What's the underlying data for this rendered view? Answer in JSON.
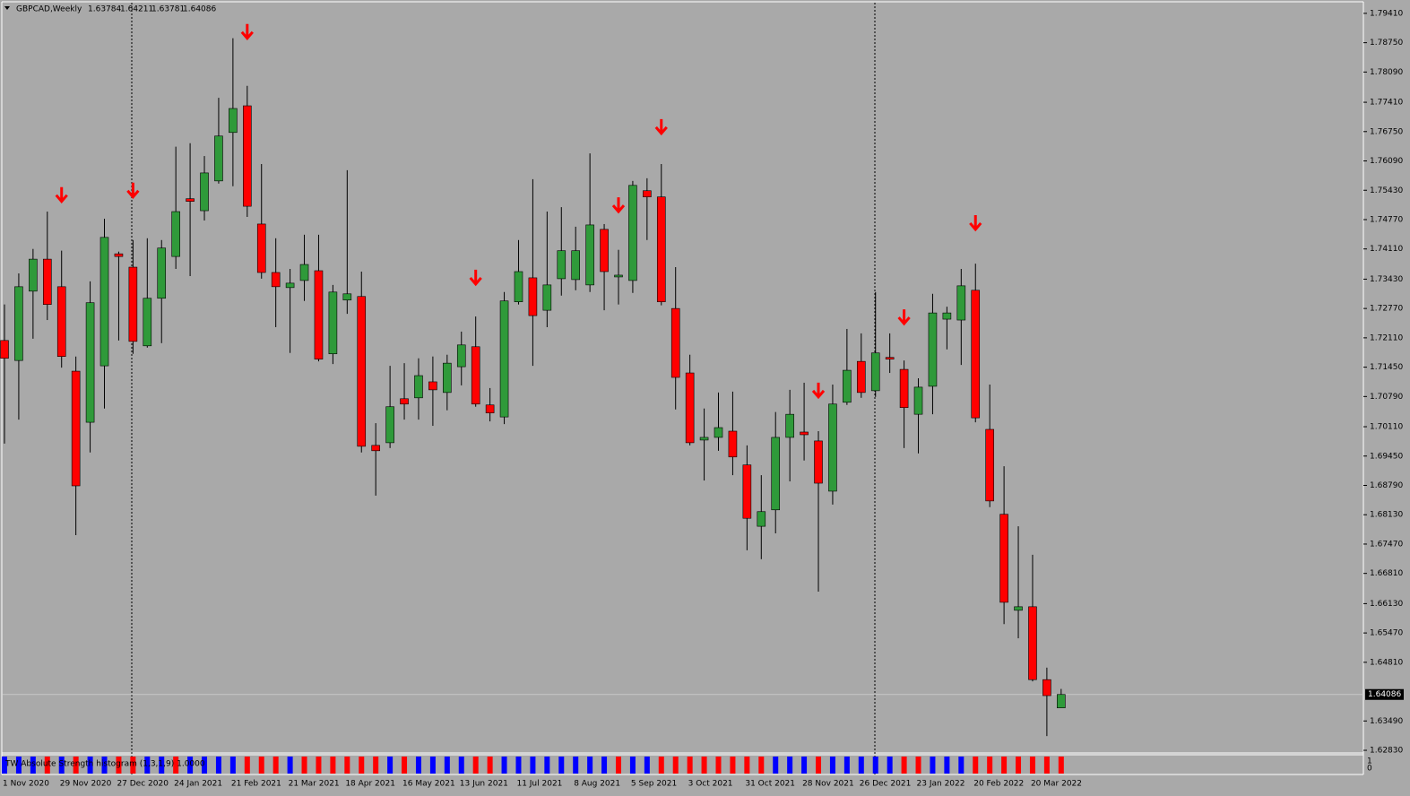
{
  "chart_data": {
    "type": "candlestick",
    "title": "GBPCAD,Weekly",
    "categories": [
      "1 Nov 2020",
      null,
      null,
      null,
      "29 Nov 2020",
      null,
      null,
      null,
      "27 Dec 2020",
      null,
      null,
      null,
      "24 Jan 2021",
      null,
      null,
      null,
      "21 Feb 2021",
      null,
      null,
      null,
      "21 Mar 2021",
      null,
      null,
      null,
      "18 Apr 2021",
      null,
      null,
      null,
      "16 May 2021",
      null,
      null,
      null,
      "13 Jun 2021",
      null,
      null,
      null,
      "11 Jul 2021",
      null,
      null,
      null,
      "8 Aug 2021",
      null,
      null,
      null,
      "5 Sep 2021",
      null,
      null,
      null,
      "3 Oct 2021",
      null,
      null,
      null,
      "31 Oct 2021",
      null,
      null,
      null,
      "28 Nov 2021",
      null,
      null,
      null,
      "26 Dec 2021",
      null,
      null,
      null,
      "23 Jan 2022",
      null,
      null,
      null,
      "20 Feb 2022",
      null,
      null,
      null,
      "20 Mar 2022",
      null,
      null
    ],
    "open": [
      1.7205,
      1.716,
      1.7316,
      1.7388,
      1.7326,
      1.7136,
      1.7021,
      1.7148,
      1.74,
      1.737,
      1.7193,
      1.73,
      1.7394,
      1.7524,
      1.7497,
      1.7564,
      1.7673,
      1.7733,
      1.7467,
      1.7358,
      1.7324,
      1.734,
      1.7362,
      1.7175,
      1.7296,
      1.7304,
      1.6969,
      1.6975,
      1.7074,
      1.7076,
      1.7112,
      1.7088,
      1.7146,
      1.7191,
      1.706,
      1.7033,
      1.7292,
      1.7346,
      1.7273,
      1.7344,
      1.7342,
      1.733,
      1.7455,
      1.7348,
      1.734,
      1.7542,
      1.7528,
      1.7277,
      1.7132,
      1.6981,
      1.6987,
      1.7001,
      1.6925,
      1.6787,
      1.6824,
      1.6987,
      1.6999,
      1.6979,
      1.6866,
      1.7066,
      1.7158,
      1.7092,
      1.7167,
      1.714,
      1.7039,
      1.7102,
      1.7253,
      1.7251,
      1.7318,
      1.7005,
      1.6814,
      1.6598,
      1.6606,
      1.6442,
      1.63784
    ],
    "high": [
      1.7286,
      1.7356,
      1.7411,
      1.7495,
      1.7407,
      1.7169,
      1.7338,
      1.7479,
      1.7405,
      1.7431,
      1.7435,
      1.7431,
      1.7641,
      1.7649,
      1.762,
      1.7751,
      1.7885,
      1.7778,
      1.7602,
      1.7435,
      1.7366,
      1.7443,
      1.7443,
      1.733,
      1.7588,
      1.736,
      1.7019,
      1.7148,
      1.7154,
      1.7165,
      1.7169,
      1.7173,
      1.7225,
      1.7259,
      1.7098,
      1.7314,
      1.7431,
      1.7568,
      1.7495,
      1.7505,
      1.7461,
      1.7626,
      1.7467,
      1.7409,
      1.7564,
      1.757,
      1.7602,
      1.737,
      1.7173,
      1.7052,
      1.7088,
      1.709,
      1.6969,
      1.6902,
      1.7044,
      1.7094,
      1.711,
      1.7001,
      1.7106,
      1.7231,
      1.7221,
      1.7314,
      1.7221,
      1.716,
      1.712,
      1.731,
      1.7281,
      1.7366,
      1.7378,
      1.7106,
      1.6922,
      1.6787,
      1.6723,
      1.6469,
      1.64211
    ],
    "low": [
      1.6973,
      1.7027,
      1.7209,
      1.7251,
      1.7144,
      1.6767,
      1.6953,
      1.7052,
      1.7205,
      1.7175,
      1.7189,
      1.7199,
      1.7366,
      1.735,
      1.7475,
      1.7558,
      1.7552,
      1.7483,
      1.7344,
      1.7235,
      1.7177,
      1.7294,
      1.7158,
      1.7152,
      1.7265,
      1.6953,
      1.6856,
      1.6963,
      1.7027,
      1.7027,
      1.7013,
      1.7048,
      1.7104,
      1.7056,
      1.7023,
      1.7017,
      1.7286,
      1.7148,
      1.7235,
      1.7306,
      1.7318,
      1.7314,
      1.7273,
      1.7286,
      1.7312,
      1.7431,
      1.7284,
      1.705,
      1.6969,
      1.689,
      1.6957,
      1.6902,
      1.6733,
      1.6713,
      1.6771,
      1.6888,
      1.6935,
      1.664,
      1.6836,
      1.706,
      1.7076,
      1.7078,
      1.7132,
      1.6963,
      1.6951,
      1.7039,
      1.7185,
      1.715,
      1.7021,
      1.683,
      1.6567,
      1.6535,
      1.6438,
      1.6315,
      1.63781
    ],
    "close": [
      1.7165,
      1.7326,
      1.7388,
      1.7286,
      1.7169,
      1.6878,
      1.729,
      1.7437,
      1.7394,
      1.7203,
      1.73,
      1.7413,
      1.7495,
      1.7518,
      1.7582,
      1.7665,
      1.7727,
      1.7507,
      1.7358,
      1.7326,
      1.7334,
      1.7376,
      1.7163,
      1.7314,
      1.731,
      1.6967,
      1.6957,
      1.7056,
      1.7062,
      1.7126,
      1.7094,
      1.7154,
      1.7195,
      1.7062,
      1.7042,
      1.7294,
      1.736,
      1.7261,
      1.733,
      1.7407,
      1.7407,
      1.7465,
      1.736,
      1.7352,
      1.7554,
      1.7528,
      1.7292,
      1.7122,
      1.6975,
      1.6987,
      1.7009,
      1.6943,
      1.6805,
      1.682,
      1.6987,
      1.7039,
      1.6993,
      1.6884,
      1.7062,
      1.7138,
      1.7088,
      1.7177,
      1.7163,
      1.7054,
      1.71,
      1.7267,
      1.7267,
      1.7328,
      1.7031,
      1.6844,
      1.6616,
      1.6606,
      1.6442,
      1.6406,
      1.64086
    ],
    "up_color": "#2f9a3a",
    "down_color": "#ff0000",
    "ylim": [
      1.6277,
      1.7965
    ],
    "yticks": [
      {
        "value": 1.7941,
        "label": "1.79410"
      },
      {
        "value": 1.7875,
        "label": "1.78750"
      },
      {
        "value": 1.7809,
        "label": "1.78090"
      },
      {
        "value": 1.7741,
        "label": "1.77410"
      },
      {
        "value": 1.7675,
        "label": "1.76750"
      },
      {
        "value": 1.7609,
        "label": "1.76090"
      },
      {
        "value": 1.7543,
        "label": "1.75430"
      },
      {
        "value": 1.7477,
        "label": "1.74770"
      },
      {
        "value": 1.7411,
        "label": "1.74110"
      },
      {
        "value": 1.7343,
        "label": "1.73430"
      },
      {
        "value": 1.7277,
        "label": "1.72770"
      },
      {
        "value": 1.7211,
        "label": "1.72110"
      },
      {
        "value": 1.7145,
        "label": "1.71450"
      },
      {
        "value": 1.7079,
        "label": "1.70790"
      },
      {
        "value": 1.7011,
        "label": "1.70110"
      },
      {
        "value": 1.6945,
        "label": "1.69450"
      },
      {
        "value": 1.6879,
        "label": "1.68790"
      },
      {
        "value": 1.6813,
        "label": "1.68130"
      },
      {
        "value": 1.6747,
        "label": "1.67470"
      },
      {
        "value": 1.6681,
        "label": "1.66810"
      },
      {
        "value": 1.6613,
        "label": "1.66130"
      },
      {
        "value": 1.6547,
        "label": "1.65470"
      },
      {
        "value": 1.6481,
        "label": "1.64810"
      },
      {
        "value": 1.6349,
        "label": "1.63490"
      },
      {
        "value": 1.6283,
        "label": "1.62830"
      }
    ],
    "signals": {
      "color": "#ff0000",
      "values": [
        null,
        null,
        null,
        null,
        1.7532,
        null,
        null,
        null,
        null,
        1.7542,
        null,
        null,
        null,
        null,
        null,
        null,
        null,
        1.7899,
        null,
        null,
        null,
        null,
        null,
        null,
        null,
        null,
        null,
        null,
        null,
        null,
        null,
        null,
        null,
        1.7346,
        null,
        null,
        null,
        null,
        null,
        null,
        null,
        null,
        null,
        1.7509,
        null,
        null,
        1.7685,
        null,
        null,
        null,
        null,
        null,
        null,
        null,
        null,
        null,
        null,
        1.7092,
        null,
        null,
        null,
        null,
        null,
        1.7257,
        null,
        null,
        null,
        null,
        1.7469,
        null,
        null,
        null,
        null,
        null,
        null
      ]
    },
    "indicator": {
      "title": "TW Absolute Strength histogram (1,3,1,9) 1.0000",
      "ylim": [
        0,
        1
      ],
      "yticks": [
        1,
        0
      ],
      "series": [
        {
          "color": "#0000ff",
          "values": [
            1,
            1,
            1,
            0,
            1,
            0,
            1,
            1,
            0,
            0,
            1,
            1,
            0,
            1,
            1,
            1,
            1,
            0,
            0,
            0,
            1,
            0,
            0,
            0,
            0,
            0,
            0,
            1,
            0,
            1,
            1,
            1,
            1,
            0,
            0,
            1,
            1,
            1,
            1,
            1,
            1,
            1,
            1,
            0,
            1,
            1,
            0,
            0,
            0,
            0,
            0,
            0,
            0,
            0,
            1,
            1,
            1,
            0,
            1,
            1,
            1,
            1,
            1,
            0,
            0,
            1,
            1,
            1,
            0,
            0,
            0,
            0,
            0,
            0,
            0
          ]
        },
        {
          "color": "#ff0000",
          "values": [
            0,
            0,
            0,
            1,
            0,
            1,
            0,
            0,
            1,
            1,
            0,
            0,
            1,
            0,
            0,
            0,
            0,
            1,
            1,
            1,
            0,
            1,
            1,
            1,
            1,
            1,
            1,
            0,
            1,
            0,
            0,
            0,
            0,
            1,
            1,
            0,
            0,
            0,
            0,
            0,
            0,
            0,
            0,
            1,
            0,
            0,
            1,
            1,
            1,
            1,
            1,
            1,
            1,
            1,
            0,
            0,
            0,
            1,
            0,
            0,
            0,
            0,
            0,
            1,
            1,
            0,
            0,
            0,
            1,
            1,
            1,
            1,
            1,
            1,
            1
          ]
        }
      ]
    }
  }
}
